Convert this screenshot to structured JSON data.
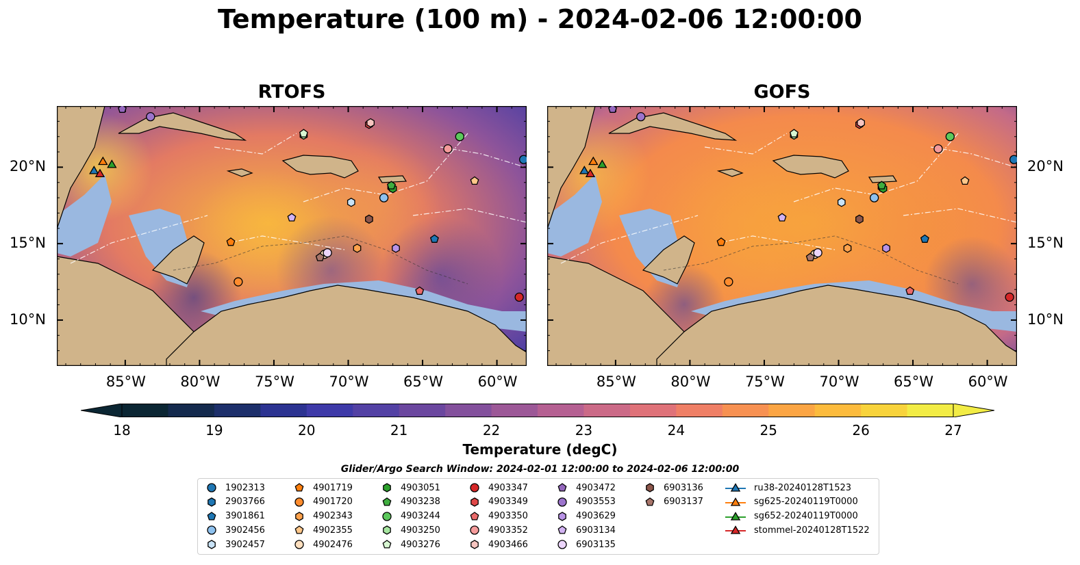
{
  "title": "Temperature (100 m) - 2024-02-06 12:00:00",
  "panels": [
    {
      "name": "RTOFS"
    },
    {
      "name": "GOFS"
    }
  ],
  "map": {
    "lon_range": [
      -89.6,
      -58.0
    ],
    "lat_range": [
      7.0,
      24.0
    ],
    "lon_ticks": [
      "85°W",
      "80°W",
      "75°W",
      "70°W",
      "65°W",
      "60°W"
    ],
    "lat_ticks": [
      "20°N",
      "15°N",
      "10°N"
    ],
    "colors": {
      "land": "#d0b48a",
      "shallow_water": "#9ab8e0",
      "deep_cold": "#0a2a3a"
    },
    "markers": [
      {
        "id": "1902313",
        "lon": -58.2,
        "lat": 20.5
      },
      {
        "id": "2903766",
        "lon": -67.1,
        "lat": 18.7
      },
      {
        "id": "3901861",
        "lon": -64.2,
        "lat": 15.3
      },
      {
        "id": "3902456",
        "lon": -67.6,
        "lat": 18.0
      },
      {
        "id": "3902457",
        "lon": -69.8,
        "lat": 17.7
      },
      {
        "id": "4901719",
        "lon": -77.9,
        "lat": 15.1
      },
      {
        "id": "4901720",
        "lon": -77.4,
        "lat": 12.5
      },
      {
        "id": "4902343",
        "lon": -69.4,
        "lat": 14.7
      },
      {
        "id": "4902355",
        "lon": -61.5,
        "lat": 19.1
      },
      {
        "id": "4902476",
        "lon": -71.6,
        "lat": 14.3
      },
      {
        "id": "4903051",
        "lon": -67.0,
        "lat": 18.6
      },
      {
        "id": "4903238",
        "lon": -67.1,
        "lat": 18.8
      },
      {
        "id": "4903244",
        "lon": -62.5,
        "lat": 22.0
      },
      {
        "id": "4903250",
        "lon": -73.0,
        "lat": 22.1
      },
      {
        "id": "4903276",
        "lon": -73.0,
        "lat": 22.2
      },
      {
        "id": "4903347",
        "lon": -58.5,
        "lat": 11.5
      },
      {
        "id": "4903349",
        "lon": -68.6,
        "lat": 22.8
      },
      {
        "id": "4903350",
        "lon": -65.2,
        "lat": 11.9
      },
      {
        "id": "4903352",
        "lon": -63.3,
        "lat": 21.2
      },
      {
        "id": "4903466",
        "lon": -68.5,
        "lat": 22.9
      },
      {
        "id": "4903472",
        "lon": -85.2,
        "lat": 23.8
      },
      {
        "id": "4903553",
        "lon": -83.3,
        "lat": 23.3
      },
      {
        "id": "4903629",
        "lon": -66.8,
        "lat": 14.7
      },
      {
        "id": "6903134",
        "lon": -73.8,
        "lat": 16.7
      },
      {
        "id": "6903135",
        "lon": -71.4,
        "lat": 14.4
      },
      {
        "id": "6903136",
        "lon": -68.6,
        "lat": 16.6
      },
      {
        "id": "6903137",
        "lon": -71.9,
        "lat": 14.1
      },
      {
        "id": "ru38-20240128T1523",
        "lon": -87.1,
        "lat": 19.8
      },
      {
        "id": "sg625-20240119T0000",
        "lon": -86.5,
        "lat": 20.4
      },
      {
        "id": "sg652-20240119T0000",
        "lon": -85.9,
        "lat": 20.2
      },
      {
        "id": "stommel-20240128T1522",
        "lon": -86.7,
        "lat": 19.6
      }
    ]
  },
  "colorbar": {
    "label": "Temperature (degC)",
    "min": 18,
    "max": 27,
    "ticks": [
      "18",
      "19",
      "20",
      "21",
      "22",
      "23",
      "24",
      "25",
      "26",
      "27"
    ],
    "colors": [
      "#0b2633",
      "#142a4d",
      "#1d2f6a",
      "#2c3391",
      "#3e3aa8",
      "#5341a4",
      "#6b479f",
      "#83509c",
      "#9c5897",
      "#b56092",
      "#cb6a87",
      "#df7279",
      "#ef7f66",
      "#f79152",
      "#fba544",
      "#fcbb3d",
      "#f8d33c",
      "#f2ec45"
    ]
  },
  "search_window": "Glider/Argo Search Window: 2024-02-01 12:00:00 to 2024-02-06 12:00:00",
  "legend": [
    {
      "label": "1902313",
      "shape": "circle",
      "color": "#1f77b4"
    },
    {
      "label": "2903766",
      "shape": "hexagon",
      "color": "#1f77b4"
    },
    {
      "label": "3901861",
      "shape": "pentagon",
      "color": "#1f77b4"
    },
    {
      "label": "3902456",
      "shape": "circle",
      "color": "#8ec1ee"
    },
    {
      "label": "3902457",
      "shape": "hexagon",
      "color": "#c9e3f7"
    },
    {
      "label": "4901719",
      "shape": "pentagon",
      "color": "#ff7f0e"
    },
    {
      "label": "4901720",
      "shape": "circle",
      "color": "#ff8c2e"
    },
    {
      "label": "4902343",
      "shape": "hexagon",
      "color": "#ffa24c"
    },
    {
      "label": "4902355",
      "shape": "pentagon",
      "color": "#ffc78a"
    },
    {
      "label": "4902476",
      "shape": "circle",
      "color": "#ffe0bf"
    },
    {
      "label": "4903051",
      "shape": "hexagon",
      "color": "#2ca02c"
    },
    {
      "label": "4903238",
      "shape": "pentagon",
      "color": "#3fae3f"
    },
    {
      "label": "4903244",
      "shape": "circle",
      "color": "#5cc85c"
    },
    {
      "label": "4903250",
      "shape": "hexagon",
      "color": "#a6e6a0"
    },
    {
      "label": "4903276",
      "shape": "pentagon",
      "color": "#d8f7d2"
    },
    {
      "label": "4903347",
      "shape": "circle",
      "color": "#d62728"
    },
    {
      "label": "4903349",
      "shape": "hexagon",
      "color": "#e04848"
    },
    {
      "label": "4903350",
      "shape": "pentagon",
      "color": "#ea6b6b"
    },
    {
      "label": "4903352",
      "shape": "circle",
      "color": "#f59b9b"
    },
    {
      "label": "4903466",
      "shape": "hexagon",
      "color": "#f7c5c0"
    },
    {
      "label": "4903472",
      "shape": "pentagon",
      "color": "#9467bd"
    },
    {
      "label": "4903553",
      "shape": "circle",
      "color": "#9c74cc"
    },
    {
      "label": "4903629",
      "shape": "hexagon",
      "color": "#b993e6"
    },
    {
      "label": "6903134",
      "shape": "pentagon",
      "color": "#d2b3f2"
    },
    {
      "label": "6903135",
      "shape": "circle",
      "color": "#ecd5fb"
    },
    {
      "label": "6903136",
      "shape": "hexagon",
      "color": "#8c564b"
    },
    {
      "label": "6903137",
      "shape": "pentagon",
      "color": "#a8756a"
    },
    {
      "label": "ru38-20240128T1523",
      "shape": "triangle-line",
      "color": "#1f77b4"
    },
    {
      "label": "sg625-20240119T0000",
      "shape": "triangle-line",
      "color": "#ff7f0e"
    },
    {
      "label": "sg652-20240119T0000",
      "shape": "triangle-line",
      "color": "#2ca02c"
    },
    {
      "label": "stommel-20240128T1522",
      "shape": "triangle-line",
      "color": "#d62728"
    }
  ]
}
